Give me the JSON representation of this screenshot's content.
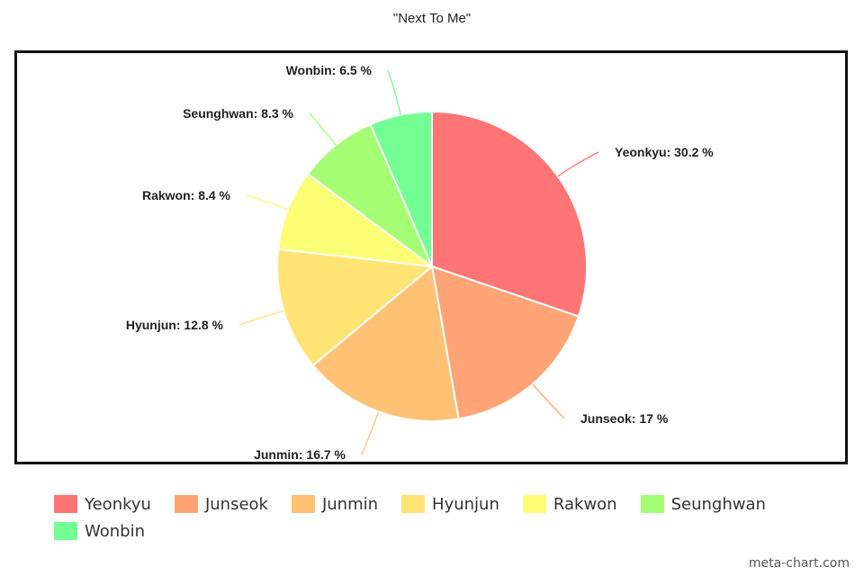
{
  "chart_data": {
    "type": "pie",
    "title": "\"Next To Me\"",
    "slices": [
      {
        "label": "Yeonkyu",
        "value": 30.2,
        "display": "Yeonkyu: 30.2 %",
        "color": "#ff7474"
      },
      {
        "label": "Junseok",
        "value": 17,
        "display": "Junseok: 17 %",
        "color": "#ffa474"
      },
      {
        "label": "Junmin",
        "value": 16.7,
        "display": "Junmin: 16.7 %",
        "color": "#ffc174"
      },
      {
        "label": "Hyunjun",
        "value": 12.8,
        "display": "Hyunjun: 12.8 %",
        "color": "#ffe474"
      },
      {
        "label": "Rakwon",
        "value": 8.4,
        "display": "Rakwon: 8.4 %",
        "color": "#fbff74"
      },
      {
        "label": "Seunghwan",
        "value": 8.3,
        "display": "Seunghwan: 8.3 %",
        "color": "#a4ff74"
      },
      {
        "label": "Wonbin",
        "value": 6.5,
        "display": "Wonbin: 6.5 %",
        "color": "#74ff94"
      }
    ],
    "legend_position": "bottom"
  },
  "watermark": "meta-chart.com"
}
